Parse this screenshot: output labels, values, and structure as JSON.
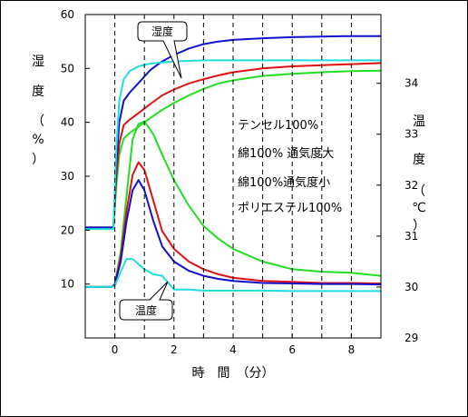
{
  "chart_data": {
    "type": "line",
    "xlabel": "時　間　（分）",
    "ylabel_left": [
      "湿",
      "度",
      "（",
      "%",
      "）"
    ],
    "ylabel_right": [
      "温",
      "度",
      "（",
      "℃",
      "）"
    ],
    "xlim": [
      -1,
      9
    ],
    "ylim_left": [
      0,
      60
    ],
    "ylim_right": [
      29,
      35.35
    ],
    "x_ticks": [
      0,
      2,
      4,
      6,
      8
    ],
    "y_ticks_left": [
      10,
      20,
      30,
      40,
      50,
      60
    ],
    "y_ticks_right": [
      29,
      30,
      31,
      32,
      33,
      34
    ],
    "dashed_vlines": [
      0,
      1,
      2,
      3,
      4,
      5,
      6,
      7,
      8
    ],
    "grid": false,
    "legend": [
      {
        "name": "テンセル100%",
        "color": "#22dd22"
      },
      {
        "name": "綿100% 通気度大",
        "color": "#dd1111"
      },
      {
        "name": "綿100%通気度小",
        "color": "#1111cc"
      },
      {
        "name": "ポリエステル100%",
        "color": "#22dddd"
      }
    ],
    "callouts": {
      "humidity": "湿度",
      "temperature": "温度"
    },
    "humidity_series": [
      {
        "name": "テンセル100%",
        "color": "#22dd22",
        "x": [
          -1,
          -0.05,
          0.05,
          0.15,
          0.3,
          0.5,
          0.8,
          1.2,
          1.6,
          2,
          2.5,
          3,
          3.5,
          4,
          5,
          6,
          7,
          8,
          9
        ],
        "y": [
          20.5,
          20.5,
          28,
          34,
          37,
          38,
          39.2,
          40.8,
          42.3,
          43.6,
          45,
          46.2,
          47.2,
          47.8,
          48.6,
          49,
          49.3,
          49.5,
          49.6
        ]
      },
      {
        "name": "綿100% 通気度大",
        "color": "#dd1111",
        "x": [
          -1,
          -0.05,
          0.05,
          0.15,
          0.3,
          0.5,
          0.8,
          1.2,
          1.6,
          2,
          2.5,
          3,
          3.5,
          4,
          5,
          6,
          7,
          8,
          9
        ],
        "y": [
          20.5,
          20.5,
          30,
          36,
          39.5,
          40.5,
          41.7,
          43.4,
          45,
          46.1,
          47.2,
          48,
          48.7,
          49.3,
          50,
          50.4,
          50.6,
          50.8,
          51
        ]
      },
      {
        "name": "綿100%通気度小",
        "color": "#1111cc",
        "x": [
          -1,
          -0.05,
          0.05,
          0.15,
          0.3,
          0.5,
          0.8,
          1.2,
          1.6,
          2,
          2.5,
          3,
          3.5,
          4,
          5,
          6,
          7,
          8,
          9
        ],
        "y": [
          20.5,
          20.5,
          32,
          40,
          44,
          45.5,
          47.3,
          49.7,
          51.3,
          52.5,
          53.7,
          54.5,
          55,
          55.3,
          55.6,
          55.8,
          55.9,
          56,
          56
        ]
      },
      {
        "name": "ポリエステル100%",
        "color": "#22dddd",
        "x": [
          -1,
          -0.05,
          0.05,
          0.15,
          0.3,
          0.5,
          0.8,
          1.2,
          1.6,
          2,
          3,
          4,
          5,
          6,
          7,
          8,
          9
        ],
        "y": [
          20.2,
          20.2,
          35,
          44,
          48,
          49.5,
          50.4,
          50.9,
          51.1,
          51.3,
          51.5,
          51.5,
          51.5,
          51.5,
          51.5,
          51.5,
          51.5
        ]
      }
    ],
    "temperature_series": [
      {
        "name": "テンセル100%",
        "color": "#22dd22",
        "x": [
          -1,
          -0.1,
          0,
          0.2,
          0.4,
          0.6,
          0.8,
          1,
          1.3,
          1.6,
          2,
          2.5,
          3,
          3.5,
          4,
          5,
          6,
          7,
          8,
          9
        ],
        "y": [
          30,
          30,
          30.05,
          30.7,
          31.8,
          32.9,
          33.2,
          33.25,
          33.0,
          32.6,
          32.1,
          31.6,
          31.2,
          30.95,
          30.75,
          30.5,
          30.35,
          30.3,
          30.28,
          30.22
        ]
      },
      {
        "name": "綿100% 通気度大",
        "color": "#dd1111",
        "x": [
          -1,
          -0.1,
          0,
          0.2,
          0.4,
          0.6,
          0.8,
          1,
          1.3,
          1.6,
          2,
          2.5,
          3,
          3.5,
          4,
          5,
          6,
          7,
          8,
          9
        ],
        "y": [
          30,
          30,
          30.05,
          30.6,
          31.5,
          32.2,
          32.45,
          32.3,
          31.7,
          31.1,
          30.75,
          30.5,
          30.35,
          30.25,
          30.18,
          30.12,
          30.1,
          30.08,
          30.08,
          30.07
        ]
      },
      {
        "name": "綿100%通気度小",
        "color": "#1111cc",
        "x": [
          -1,
          -0.1,
          0,
          0.2,
          0.4,
          0.6,
          0.8,
          1,
          1.3,
          1.6,
          2,
          2.5,
          3,
          3.5,
          4,
          5,
          6,
          7,
          8,
          9
        ],
        "y": [
          30,
          30,
          30.05,
          30.5,
          31.3,
          31.9,
          32.1,
          31.9,
          31.3,
          30.8,
          30.5,
          30.32,
          30.22,
          30.16,
          30.12,
          30.08,
          30.07,
          30.06,
          30.06,
          30.05
        ]
      },
      {
        "name": "ポリエステル100%",
        "color": "#22dddd",
        "x": [
          -1,
          -0.1,
          0,
          0.2,
          0.4,
          0.6,
          0.8,
          1,
          1.3,
          1.6,
          2,
          2.5,
          3,
          4,
          5,
          6,
          7,
          8,
          9
        ],
        "y": [
          30,
          30,
          30.02,
          30.3,
          30.55,
          30.55,
          30.45,
          30.35,
          30.25,
          30.22,
          29.95,
          29.95,
          29.93,
          29.93,
          29.93,
          29.92,
          29.92,
          29.92,
          29.92
        ]
      }
    ]
  }
}
